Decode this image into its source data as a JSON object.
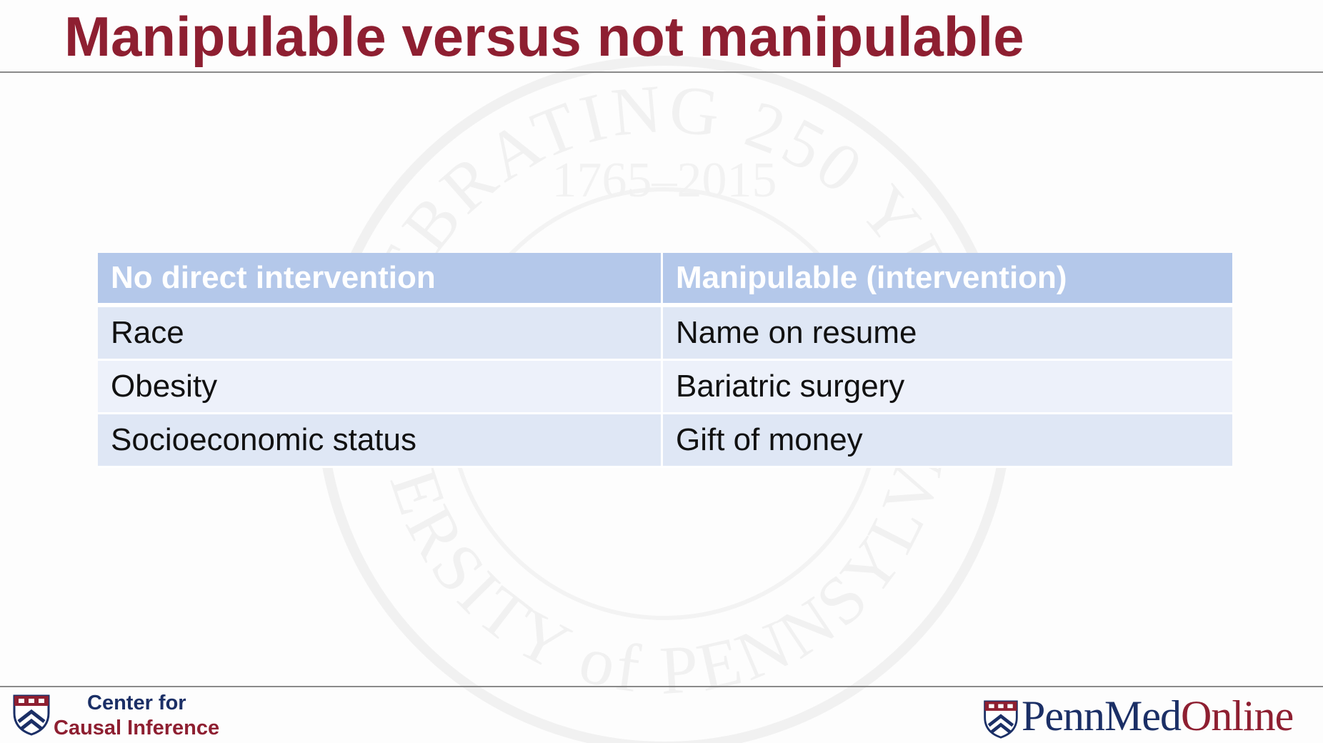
{
  "slide": {
    "title": "Manipulable versus not manipulable"
  },
  "watermark": {
    "top_text": "CELEBRATING 250 YEARS",
    "years": "1765–2015",
    "bottom_text": "UNIVERSITY of PENNSYLVANIA"
  },
  "table": {
    "headers": [
      "No direct intervention",
      "Manipulable (intervention)"
    ],
    "rows": [
      [
        "Race",
        "Name on resume"
      ],
      [
        "Obesity",
        "Bariatric surgery"
      ],
      [
        "Socioeconomic status",
        "Gift of money"
      ]
    ]
  },
  "footer": {
    "center_line1": "Center for",
    "center_line2": "Causal Inference",
    "brand_penn_med": "PennMed",
    "brand_online": "Online"
  },
  "colors": {
    "title": "#8e1f31",
    "header_bg": "#b4c8ea",
    "row_odd": "#dfe7f5",
    "row_even": "#edf1fa",
    "penn_blue": "#1b2f66",
    "penn_red": "#8e1f31"
  }
}
